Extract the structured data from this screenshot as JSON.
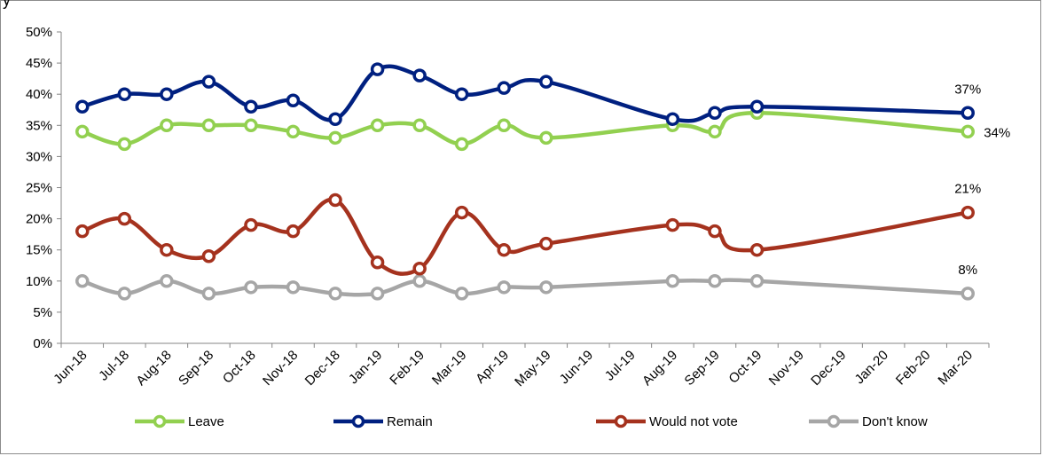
{
  "chart_data": {
    "type": "line",
    "title_fragment": "y",
    "categories": [
      "Jun-18",
      "Jul-18",
      "Aug-18",
      "Sep-18",
      "Oct-18",
      "Nov-18",
      "Dec-18",
      "Jan-19",
      "Feb-19",
      "Mar-19",
      "Apr-19",
      "May-19",
      "Jun-19",
      "Jul-19",
      "Aug-19",
      "Sep-19",
      "Oct-19",
      "Nov-19",
      "Dec-19",
      "Jan-20",
      "Feb-20",
      "Mar-20"
    ],
    "ylim": [
      0,
      50
    ],
    "yticks": [
      "0%",
      "5%",
      "10%",
      "15%",
      "20%",
      "25%",
      "30%",
      "35%",
      "40%",
      "45%",
      "50%"
    ],
    "grid": false,
    "legend_position": "bottom",
    "series": [
      {
        "name": "Leave",
        "color": "#92d050",
        "values": [
          34,
          32,
          35,
          35,
          35,
          34,
          33,
          35,
          35,
          32,
          35,
          33,
          null,
          null,
          35,
          34,
          37,
          null,
          null,
          null,
          null,
          34
        ],
        "end_label": "34%"
      },
      {
        "name": "Remain",
        "color": "#002080",
        "values": [
          38,
          40,
          40,
          42,
          38,
          39,
          36,
          44,
          43,
          40,
          41,
          42,
          null,
          null,
          36,
          37,
          38,
          null,
          null,
          null,
          null,
          37
        ],
        "end_label": "37%"
      },
      {
        "name": "Would not vote",
        "color": "#a5321e",
        "values": [
          18,
          20,
          15,
          14,
          19,
          18,
          23,
          13,
          12,
          21,
          15,
          16,
          null,
          null,
          19,
          18,
          15,
          null,
          null,
          null,
          null,
          21
        ],
        "end_label": "21%"
      },
      {
        "name": "Don't know",
        "color": "#a6a6a6",
        "values": [
          10,
          8,
          10,
          8,
          9,
          9,
          8,
          8,
          10,
          8,
          9,
          9,
          null,
          null,
          10,
          10,
          10,
          null,
          null,
          null,
          null,
          8
        ],
        "end_label": "8%"
      }
    ]
  }
}
